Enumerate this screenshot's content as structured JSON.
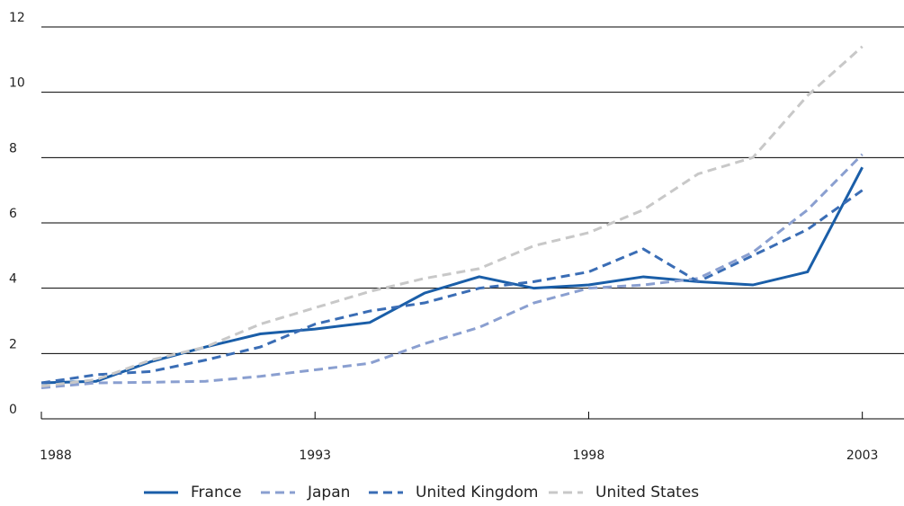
{
  "chart_data": {
    "type": "line",
    "x": [
      1988,
      1989,
      1990,
      1991,
      1992,
      1993,
      1994,
      1995,
      1996,
      1997,
      1998,
      1999,
      2000,
      2001,
      2002,
      2003
    ],
    "series": [
      {
        "name": "France",
        "color": "#1a5ea8",
        "style": "solid",
        "values": [
          1.1,
          1.15,
          1.75,
          2.2,
          2.6,
          2.75,
          2.95,
          3.85,
          4.35,
          4.0,
          4.1,
          4.35,
          4.2,
          4.1,
          4.5,
          7.7
        ]
      },
      {
        "name": "Japan",
        "color": "#8a9fd0",
        "style": "dashed",
        "values": [
          0.95,
          1.1,
          1.12,
          1.15,
          1.3,
          1.5,
          1.7,
          2.3,
          2.8,
          3.55,
          4.0,
          4.1,
          4.3,
          5.1,
          6.4,
          8.1
        ]
      },
      {
        "name": "United Kingdom",
        "color": "#3a6db5",
        "style": "dashed",
        "values": [
          1.1,
          1.35,
          1.45,
          1.8,
          2.2,
          2.9,
          3.3,
          3.55,
          4.0,
          4.2,
          4.5,
          5.2,
          4.2,
          5.0,
          5.8,
          7.0
        ]
      },
      {
        "name": "United States",
        "color": "#c8c8c8",
        "style": "dashed",
        "values": [
          1.0,
          1.2,
          1.8,
          2.2,
          2.9,
          3.4,
          3.9,
          4.3,
          4.6,
          5.3,
          5.7,
          6.4,
          7.5,
          8.0,
          9.9,
          11.4
        ]
      }
    ],
    "xlim": [
      1988,
      2003.4
    ],
    "xticks": [
      1988,
      1993,
      1998,
      2003
    ],
    "ylim": [
      0,
      12
    ],
    "yticks": [
      0,
      2,
      4,
      6,
      8,
      10,
      12
    ],
    "grid": true,
    "legend": "bottom"
  }
}
